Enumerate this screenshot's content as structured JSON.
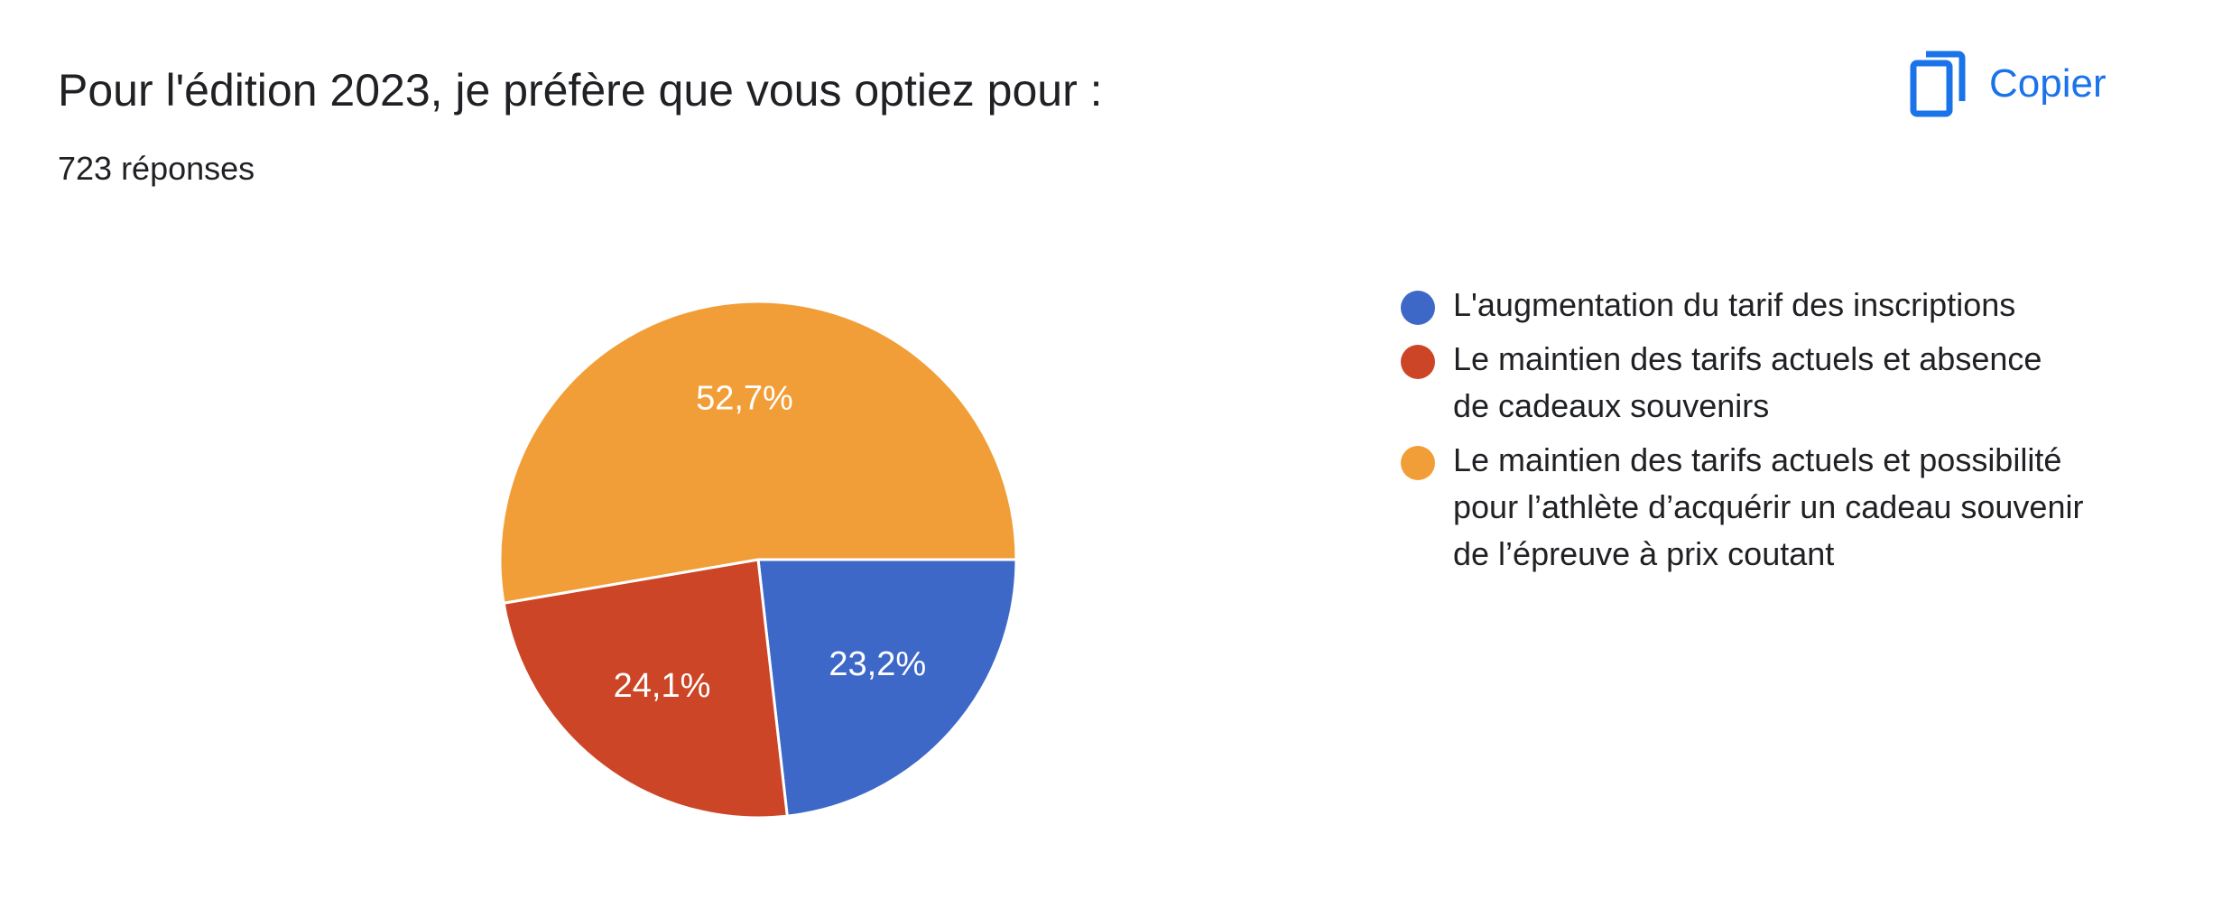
{
  "header": {
    "title": "Pour l'édition 2023, je préfère que vous optiez pour :",
    "response_count": "723 réponses",
    "copy_label": "Copier",
    "copy_icon": "copy-icon"
  },
  "colors": {
    "accent": "#1a73e8",
    "slice_border": "#ffffff"
  },
  "chart_data": {
    "type": "pie",
    "title": "Pour l'édition 2023, je préfère que vous optiez pour :",
    "legend_position": "right",
    "slices": [
      {
        "name": "L'augmentation du tarif des inscriptions",
        "value": 23.2,
        "label": "23,2%",
        "color": "#3e68c8"
      },
      {
        "name": "Le maintien des tarifs actuels et absence de cadeaux souvenirs",
        "value": 24.1,
        "label": "24,1%",
        "color": "#cc4527"
      },
      {
        "name": "Le maintien des tarifs actuels et possibilité pour l’athlète d’acquérir un cadeau souvenir de l’épreuve à prix coutant",
        "value": 52.7,
        "label": "52,7%",
        "color": "#f29e38"
      }
    ]
  }
}
